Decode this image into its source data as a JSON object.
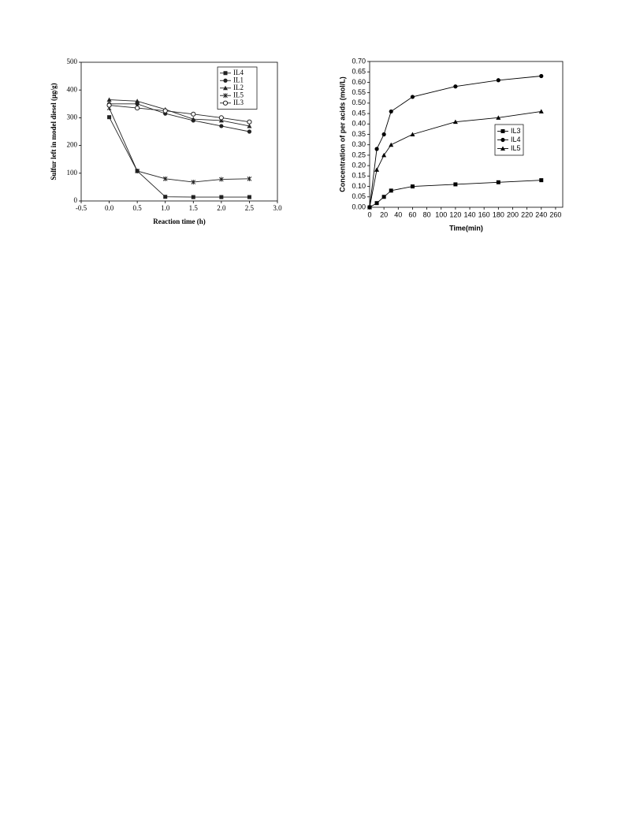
{
  "chart_data": [
    {
      "type": "line",
      "x_label": "Reaction time (h)",
      "y_label": "Sulfur left in model diesel (μg/g)",
      "xlim": [
        -0.5,
        3.0
      ],
      "xticks": [
        -0.5,
        {
          "value": 0,
          "label": "0.0"
        },
        0.5,
        {
          "value": 1,
          "label": "1.0"
        },
        1.5,
        {
          "value": 2,
          "label": "2.0"
        },
        2.5,
        {
          "value": 3,
          "label": "3.0"
        }
      ],
      "ylim": [
        0,
        500
      ],
      "yticks": [
        0,
        100,
        200,
        300,
        400,
        500
      ],
      "legend": "upper right",
      "x": [
        0,
        0.5,
        1,
        1.5,
        2,
        2.5
      ],
      "series": [
        {
          "name": "IL4",
          "color": "#222",
          "marker": "square",
          "values": [
            302,
            108,
            15,
            14,
            14,
            14
          ]
        },
        {
          "name": "IL1",
          "color": "#222",
          "marker": "dot",
          "values": [
            350,
            350,
            315,
            290,
            270,
            250
          ]
        },
        {
          "name": "IL2",
          "color": "#222",
          "marker": "triangle",
          "values": [
            365,
            360,
            330,
            295,
            290,
            270
          ]
        },
        {
          "name": "IL5",
          "color": "#222",
          "marker": "star",
          "values": [
            335,
            108,
            80,
            68,
            78,
            80
          ]
        },
        {
          "name": "IL3",
          "color": "#222",
          "marker": "open-circle",
          "values": [
            345,
            335,
            325,
            313,
            300,
            285
          ]
        }
      ]
    },
    {
      "type": "line",
      "x_label": "Time(min)",
      "y_label": "Concentration of per acids (mol/L)",
      "xlim": [
        0,
        270
      ],
      "xticks": [
        0,
        20,
        40,
        60,
        80,
        100,
        120,
        140,
        160,
        180,
        200,
        220,
        240,
        260
      ],
      "ylim": [
        0,
        0.7
      ],
      "yticks": [
        {
          "value": 0,
          "label": "0.00"
        },
        0.05,
        {
          "value": 0.1,
          "label": "0.10"
        },
        0.15,
        {
          "value": 0.2,
          "label": "0.20"
        },
        0.25,
        {
          "value": 0.3,
          "label": "0.30"
        },
        0.35,
        {
          "value": 0.4,
          "label": "0.40"
        },
        0.45,
        {
          "value": 0.5,
          "label": "0.50"
        },
        0.55,
        {
          "value": 0.6,
          "label": "0.60"
        },
        0.65,
        {
          "value": 0.7,
          "label": "0.70"
        }
      ],
      "legend": "center right",
      "x": [
        0,
        10,
        20,
        30,
        60,
        120,
        180,
        240
      ],
      "series": [
        {
          "name": "IL3",
          "color": "#000",
          "marker": "square",
          "values": [
            0,
            0.02,
            0.05,
            0.08,
            0.1,
            0.11,
            0.12,
            0.13
          ]
        },
        {
          "name": "IL4",
          "color": "#000",
          "marker": "dot",
          "values": [
            0,
            0.28,
            0.35,
            0.46,
            0.53,
            0.58,
            0.61,
            0.63
          ]
        },
        {
          "name": "IL5",
          "color": "#000",
          "marker": "triangle",
          "values": [
            0,
            0.18,
            0.25,
            0.3,
            0.35,
            0.41,
            0.43,
            0.46
          ]
        }
      ]
    }
  ]
}
